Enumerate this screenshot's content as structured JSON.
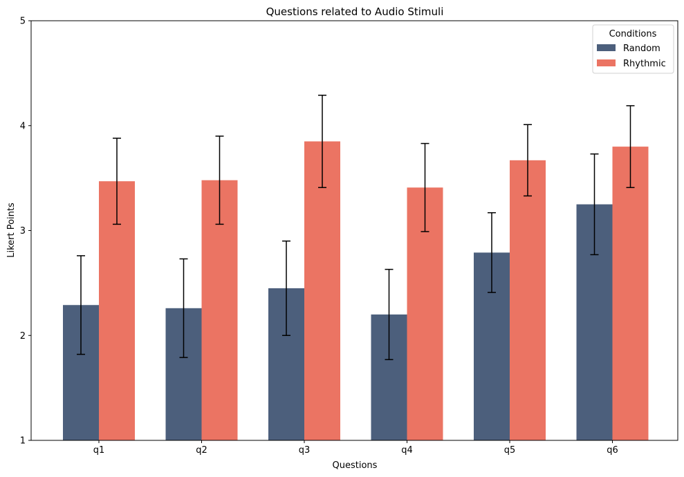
{
  "chart_data": {
    "type": "bar",
    "title": "Questions related to Audio Stimuli",
    "xlabel": "Questions",
    "ylabel": "Likert Points",
    "categories": [
      "q1",
      "q2",
      "q3",
      "q4",
      "q5",
      "q6"
    ],
    "ylim": [
      1,
      5
    ],
    "yticks": [
      1,
      2,
      3,
      4,
      5
    ],
    "grid": false,
    "legend": {
      "title": "Conditions",
      "placement": "top-right"
    },
    "series": [
      {
        "name": "Random",
        "color": "#4c5f7c",
        "values": [
          2.29,
          2.26,
          2.45,
          2.2,
          2.79,
          3.25
        ],
        "error": [
          0.47,
          0.47,
          0.45,
          0.43,
          0.38,
          0.48
        ]
      },
      {
        "name": "Rhythmic",
        "color": "#eb7463",
        "values": [
          3.47,
          3.48,
          3.85,
          3.41,
          3.67,
          3.8
        ],
        "error": [
          0.41,
          0.42,
          0.44,
          0.42,
          0.34,
          0.39
        ]
      }
    ]
  }
}
